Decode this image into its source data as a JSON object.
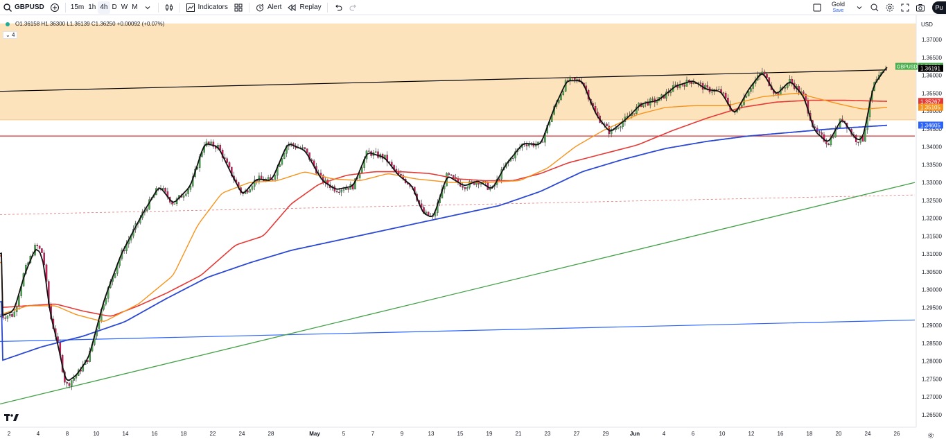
{
  "toolbar": {
    "symbol": "GBPUSD",
    "timeframes": [
      "15m",
      "1h",
      "4h",
      "D",
      "W",
      "M"
    ],
    "active_timeframe": "4h",
    "indicators_label": "Indicators",
    "alert_label": "Alert",
    "replay_label": "Replay",
    "layout_name": "Gold",
    "save_label": "Save",
    "publish_label": "Pu"
  },
  "legend": {
    "ohlc": "O1.36158  H1.36300  L1.36139  C1.36250  +0.00092 (+0.07%)",
    "collapse_count": "4"
  },
  "chart_data": {
    "type": "candlestick",
    "symbol": "GBPUSD",
    "timeframe": "4h",
    "currency": "USD",
    "ylim": [
      1.2625,
      1.371
    ],
    "y_ticks": [
      "1.37000",
      "1.36500",
      "1.36000",
      "1.35500",
      "1.35000",
      "1.34500",
      "1.34000",
      "1.33500",
      "1.33000",
      "1.32500",
      "1.32000",
      "1.31500",
      "1.31000",
      "1.30500",
      "1.30000",
      "1.29500",
      "1.29000",
      "1.28500",
      "1.28000",
      "1.27500",
      "1.27000",
      "1.26500"
    ],
    "x_ticks": [
      "2",
      "4",
      "8",
      "10",
      "14",
      "16",
      "18",
      "22",
      "24",
      "28",
      "May",
      "5",
      "7",
      "9",
      "13",
      "15",
      "19",
      "21",
      "23",
      "27",
      "29",
      "Jun",
      "4",
      "6",
      "10",
      "12",
      "16",
      "18",
      "20",
      "24",
      "26"
    ],
    "x_tick_positions": [
      13,
      55,
      97,
      139,
      181,
      223,
      265,
      307,
      349,
      391,
      454,
      496,
      538,
      580,
      622,
      664,
      706,
      748,
      790,
      832,
      874,
      916,
      958,
      1000,
      1042,
      1084,
      1126,
      1168,
      1210,
      1252,
      1294
    ],
    "x_domain": [
      0,
      1320
    ],
    "price_path": [
      [
        0,
        1.2925
      ],
      [
        20,
        1.293
      ],
      [
        35,
        1.305
      ],
      [
        52,
        1.3125
      ],
      [
        62,
        1.31
      ],
      [
        72,
        1.293
      ],
      [
        82,
        1.286
      ],
      [
        95,
        1.273
      ],
      [
        110,
        1.276
      ],
      [
        128,
        1.281
      ],
      [
        150,
        1.297
      ],
      [
        175,
        1.31
      ],
      [
        205,
        1.321
      ],
      [
        230,
        1.329
      ],
      [
        250,
        1.324
      ],
      [
        275,
        1.329
      ],
      [
        295,
        1.341
      ],
      [
        315,
        1.34
      ],
      [
        335,
        1.332
      ],
      [
        350,
        1.3265
      ],
      [
        370,
        1.331
      ],
      [
        392,
        1.3305
      ],
      [
        415,
        1.341
      ],
      [
        440,
        1.339
      ],
      [
        465,
        1.3305
      ],
      [
        485,
        1.328
      ],
      [
        510,
        1.329
      ],
      [
        530,
        1.3385
      ],
      [
        555,
        1.337
      ],
      [
        575,
        1.332
      ],
      [
        595,
        1.329
      ],
      [
        610,
        1.3215
      ],
      [
        625,
        1.32
      ],
      [
        645,
        1.332
      ],
      [
        670,
        1.329
      ],
      [
        690,
        1.3305
      ],
      [
        710,
        1.328
      ],
      [
        730,
        1.335
      ],
      [
        755,
        1.341
      ],
      [
        780,
        1.3405
      ],
      [
        800,
        1.351
      ],
      [
        818,
        1.3585
      ],
      [
        840,
        1.3585
      ],
      [
        860,
        1.349
      ],
      [
        880,
        1.344
      ],
      [
        905,
        1.348
      ],
      [
        925,
        1.352
      ],
      [
        950,
        1.353
      ],
      [
        975,
        1.357
      ],
      [
        1000,
        1.3585
      ],
      [
        1020,
        1.356
      ],
      [
        1040,
        1.3555
      ],
      [
        1060,
        1.349
      ],
      [
        1080,
        1.356
      ],
      [
        1100,
        1.361
      ],
      [
        1120,
        1.3545
      ],
      [
        1140,
        1.3585
      ],
      [
        1160,
        1.354
      ],
      [
        1175,
        1.3445
      ],
      [
        1195,
        1.341
      ],
      [
        1215,
        1.348
      ],
      [
        1235,
        1.342
      ],
      [
        1245,
        1.342
      ],
      [
        1260,
        1.357
      ],
      [
        1280,
        1.3625
      ]
    ],
    "ma_black_path": [
      [
        0,
        1.2925
      ],
      [
        20,
        1.294
      ],
      [
        35,
        1.304
      ],
      [
        52,
        1.312
      ],
      [
        62,
        1.309
      ],
      [
        72,
        1.2935
      ],
      [
        82,
        1.286
      ],
      [
        95,
        1.274
      ],
      [
        110,
        1.276
      ],
      [
        128,
        1.281
      ],
      [
        150,
        1.297
      ],
      [
        175,
        1.31
      ],
      [
        205,
        1.321
      ],
      [
        230,
        1.329
      ],
      [
        250,
        1.324
      ],
      [
        275,
        1.329
      ],
      [
        295,
        1.341
      ],
      [
        315,
        1.34
      ],
      [
        335,
        1.332
      ],
      [
        350,
        1.3265
      ],
      [
        370,
        1.331
      ],
      [
        392,
        1.3305
      ],
      [
        415,
        1.341
      ],
      [
        440,
        1.339
      ],
      [
        465,
        1.3305
      ],
      [
        485,
        1.328
      ],
      [
        510,
        1.329
      ],
      [
        530,
        1.3385
      ],
      [
        555,
        1.337
      ],
      [
        575,
        1.332
      ],
      [
        595,
        1.329
      ],
      [
        610,
        1.3215
      ],
      [
        625,
        1.32
      ],
      [
        645,
        1.332
      ],
      [
        670,
        1.329
      ],
      [
        690,
        1.3305
      ],
      [
        710,
        1.328
      ],
      [
        730,
        1.335
      ],
      [
        755,
        1.341
      ],
      [
        780,
        1.3405
      ],
      [
        800,
        1.351
      ],
      [
        818,
        1.3585
      ],
      [
        840,
        1.3585
      ],
      [
        860,
        1.349
      ],
      [
        880,
        1.344
      ],
      [
        905,
        1.348
      ],
      [
        925,
        1.352
      ],
      [
        950,
        1.353
      ],
      [
        975,
        1.357
      ],
      [
        1000,
        1.3585
      ],
      [
        1020,
        1.356
      ],
      [
        1040,
        1.3555
      ],
      [
        1060,
        1.349
      ],
      [
        1080,
        1.356
      ],
      [
        1100,
        1.361
      ],
      [
        1120,
        1.3545
      ],
      [
        1140,
        1.3585
      ],
      [
        1160,
        1.354
      ],
      [
        1175,
        1.3445
      ],
      [
        1195,
        1.341
      ],
      [
        1215,
        1.348
      ],
      [
        1235,
        1.342
      ],
      [
        1245,
        1.342
      ],
      [
        1260,
        1.357
      ],
      [
        1280,
        1.3625
      ]
    ],
    "ma_orange_path": [
      [
        0,
        1.293
      ],
      [
        40,
        1.2955
      ],
      [
        80,
        1.2955
      ],
      [
        110,
        1.293
      ],
      [
        150,
        1.291
      ],
      [
        200,
        1.296
      ],
      [
        250,
        1.304
      ],
      [
        285,
        1.318
      ],
      [
        320,
        1.327
      ],
      [
        360,
        1.33
      ],
      [
        400,
        1.3305
      ],
      [
        440,
        1.333
      ],
      [
        480,
        1.331
      ],
      [
        520,
        1.3305
      ],
      [
        560,
        1.3325
      ],
      [
        600,
        1.331
      ],
      [
        650,
        1.33
      ],
      [
        700,
        1.33
      ],
      [
        750,
        1.3305
      ],
      [
        790,
        1.334
      ],
      [
        830,
        1.34
      ],
      [
        870,
        1.3445
      ],
      [
        920,
        1.349
      ],
      [
        960,
        1.351
      ],
      [
        1000,
        1.3515
      ],
      [
        1050,
        1.3515
      ],
      [
        1100,
        1.354
      ],
      [
        1150,
        1.355
      ],
      [
        1180,
        1.3535
      ],
      [
        1210,
        1.352
      ],
      [
        1245,
        1.3505
      ],
      [
        1280,
        1.351
      ]
    ],
    "ma_red_path": [
      [
        0,
        1.295
      ],
      [
        40,
        1.2955
      ],
      [
        80,
        1.296
      ],
      [
        120,
        1.294
      ],
      [
        160,
        1.2925
      ],
      [
        200,
        1.2955
      ],
      [
        240,
        1.299
      ],
      [
        290,
        1.304
      ],
      [
        340,
        1.3125
      ],
      [
        380,
        1.315
      ],
      [
        420,
        1.324
      ],
      [
        460,
        1.3295
      ],
      [
        500,
        1.332
      ],
      [
        540,
        1.333
      ],
      [
        580,
        1.333
      ],
      [
        620,
        1.3325
      ],
      [
        660,
        1.331
      ],
      [
        700,
        1.3305
      ],
      [
        740,
        1.3305
      ],
      [
        780,
        1.3325
      ],
      [
        820,
        1.3355
      ],
      [
        870,
        1.338
      ],
      [
        920,
        1.3405
      ],
      [
        970,
        1.3445
      ],
      [
        1020,
        1.348
      ],
      [
        1070,
        1.351
      ],
      [
        1120,
        1.3525
      ],
      [
        1170,
        1.353
      ],
      [
        1220,
        1.353
      ],
      [
        1280,
        1.3527
      ]
    ],
    "ma_blue_path": [
      [
        0,
        1.28
      ],
      [
        60,
        1.284
      ],
      [
        120,
        1.287
      ],
      [
        180,
        1.291
      ],
      [
        240,
        1.2975
      ],
      [
        300,
        1.3035
      ],
      [
        360,
        1.3075
      ],
      [
        420,
        1.311
      ],
      [
        480,
        1.3135
      ],
      [
        540,
        1.316
      ],
      [
        600,
        1.3185
      ],
      [
        660,
        1.321
      ],
      [
        720,
        1.3235
      ],
      [
        780,
        1.3275
      ],
      [
        840,
        1.333
      ],
      [
        900,
        1.3365
      ],
      [
        960,
        1.3395
      ],
      [
        1020,
        1.3415
      ],
      [
        1080,
        1.343
      ],
      [
        1140,
        1.344
      ],
      [
        1200,
        1.345
      ],
      [
        1280,
        1.346
      ]
    ],
    "trendlines": {
      "black_resistance": [
        [
          0,
          1.3555
        ],
        [
          1280,
          1.3615
        ]
      ],
      "red_horizontal": [
        [
          0,
          1.343
        ],
        [
          1320,
          1.343
        ]
      ],
      "green_support": [
        [
          0,
          1.268
        ],
        [
          1320,
          1.33
        ]
      ],
      "blue_long": [
        [
          0,
          1.2855
        ],
        [
          1320,
          1.2915
        ]
      ],
      "red_dashed": [
        [
          0,
          1.321
        ],
        [
          1320,
          1.3265
        ]
      ]
    },
    "zone": [
      1.3475,
      1.3745
    ],
    "price_labels": [
      {
        "text": "1.36250",
        "value": 1.3625,
        "color": "#4caf50",
        "tag": "GBPUSD"
      },
      {
        "text": "1.36191",
        "value": 1.36191,
        "color": "#000000"
      },
      {
        "text": "1.35267",
        "value": 1.35267,
        "color": "#e53935"
      },
      {
        "text": "1.35105",
        "value": 1.35105,
        "color": "#f7931a"
      },
      {
        "text": "1.34605",
        "value": 1.34605,
        "color": "#2962ff"
      }
    ]
  }
}
